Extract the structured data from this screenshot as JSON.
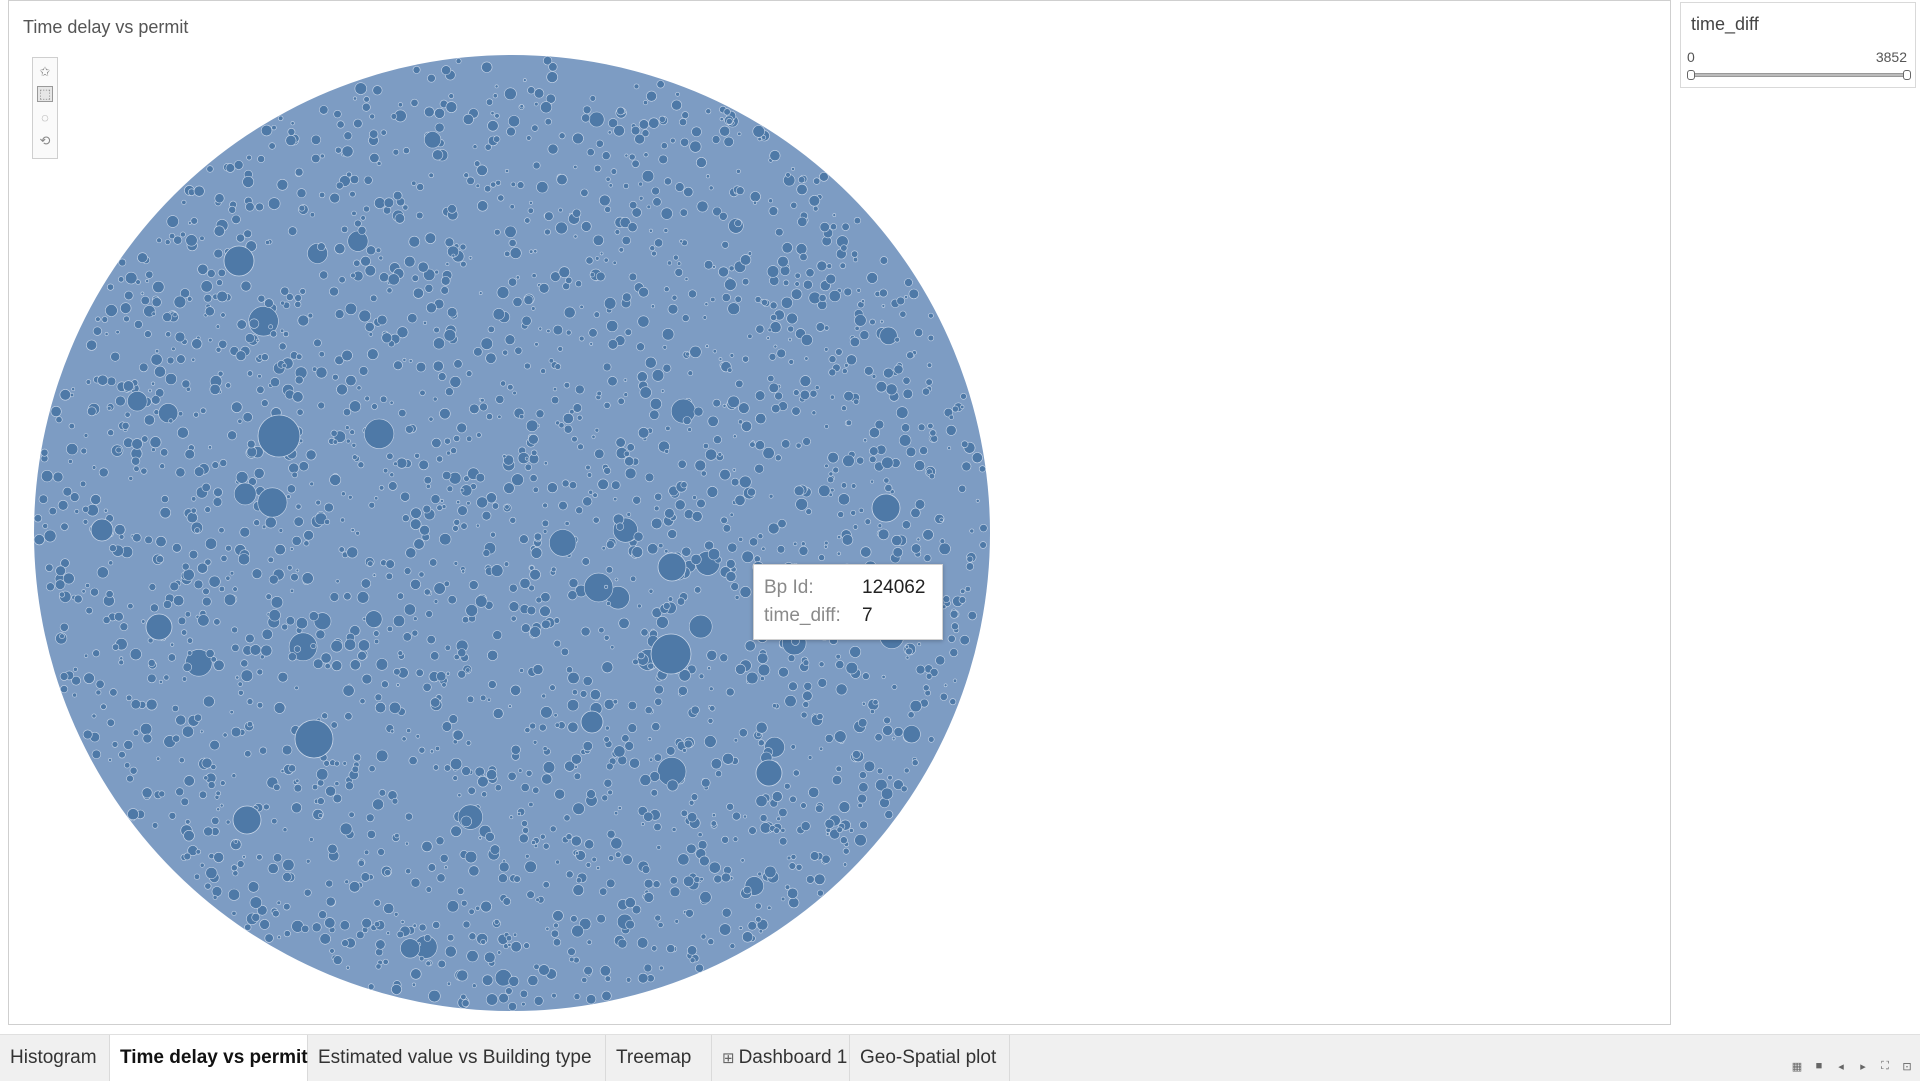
{
  "sheet": {
    "title": "Time delay vs permit"
  },
  "toolbar": {
    "tools": [
      {
        "icon": "pin-icon",
        "glyph": "✩"
      },
      {
        "icon": "rectangle-select-icon",
        "glyph": "⬚"
      },
      {
        "icon": "radial-select-icon",
        "glyph": "◌"
      },
      {
        "icon": "lasso-select-icon",
        "glyph": "⟲"
      }
    ],
    "active_tool": 1
  },
  "chart_data": {
    "type": "packed-bubbles",
    "color": "#4e79a7",
    "measure": "time_diff",
    "detail": "Bp Id",
    "hovered_mark": {
      "Bp Id": "124062",
      "time_diff": "7"
    }
  },
  "tooltip": {
    "rows": [
      {
        "key": "Bp Id:",
        "value": "124062"
      },
      {
        "key": "time_diff:",
        "value": "7"
      }
    ]
  },
  "filter": {
    "title": "time_diff",
    "min_label": "0",
    "max_label": "3852",
    "range": [
      0,
      3852
    ]
  },
  "tabs": [
    {
      "label": "Histogram",
      "active": false
    },
    {
      "label": "Time delay vs permit",
      "active": true
    },
    {
      "label": "Estimated value vs Building type",
      "active": false
    },
    {
      "label": "Treemap",
      "active": false
    },
    {
      "label": "Dashboard 1",
      "active": false,
      "icon": "dashboard-icon"
    },
    {
      "label": "Geo-Spatial plot",
      "active": false
    }
  ],
  "nav_controls": [
    {
      "name": "grid-view-icon",
      "glyph": "▦"
    },
    {
      "name": "filmstrip-view-icon",
      "glyph": "■"
    },
    {
      "name": "previous-sheet-icon",
      "glyph": "◂"
    },
    {
      "name": "next-sheet-icon",
      "glyph": "▸"
    },
    {
      "name": "fullscreen-icon",
      "glyph": "⛶"
    },
    {
      "name": "presentation-mode-icon",
      "glyph": "⊡"
    }
  ]
}
